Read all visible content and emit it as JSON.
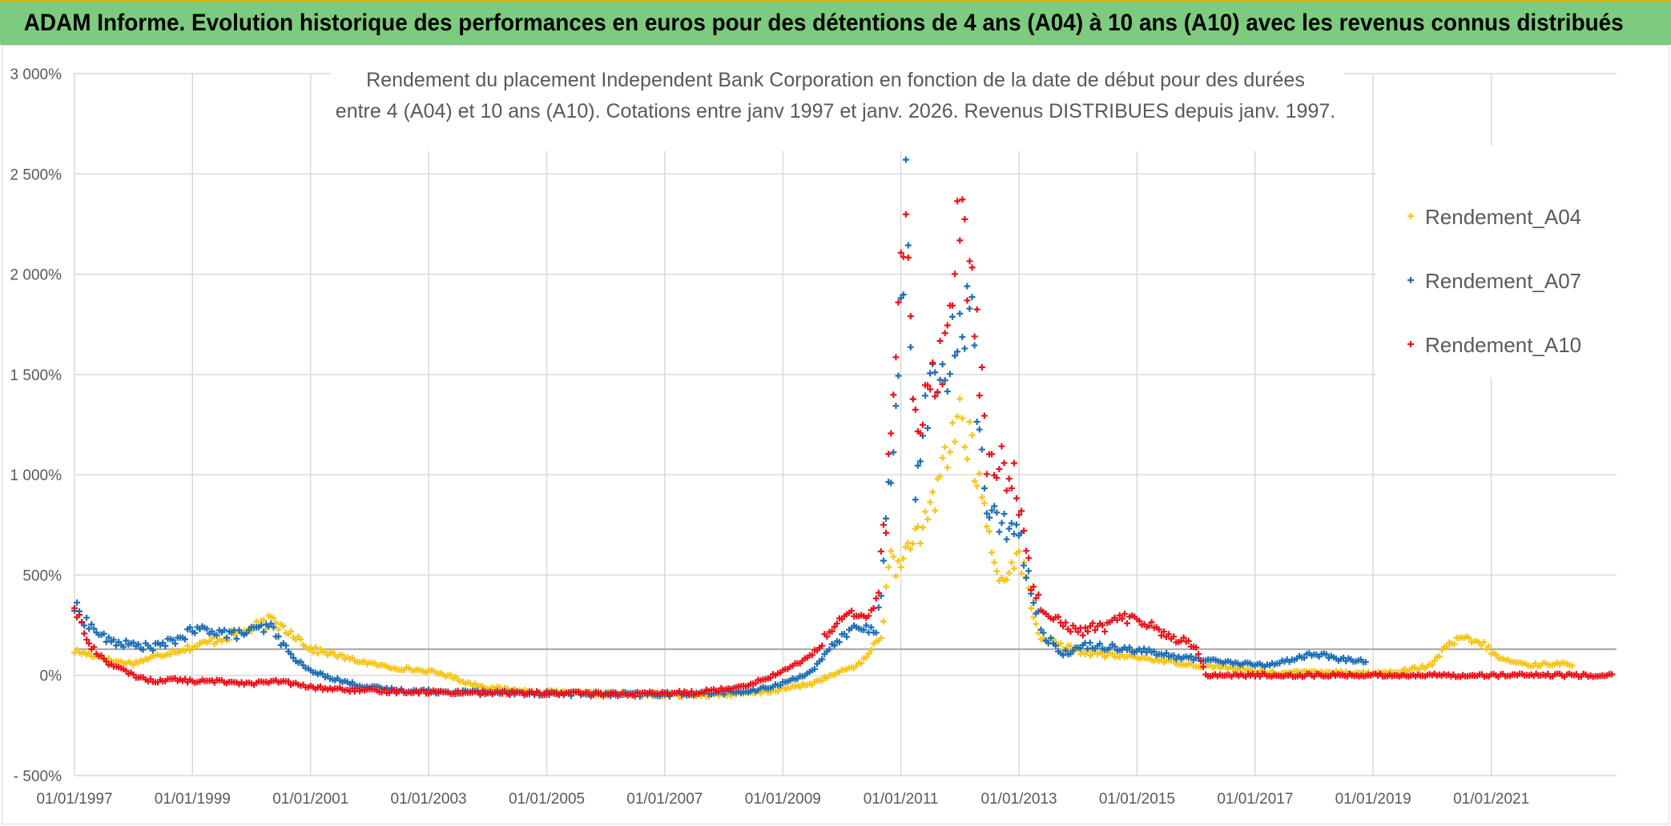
{
  "banner": {
    "title": "ADAM Informe. Evolution historique des performances en euros pour des détentions de 4 ans (A04) à 10 ans (A10) avec les revenus connus distribués"
  },
  "colors": {
    "A04": "#f5c518",
    "A07": "#1f6fb5",
    "A10": "#e8141c",
    "grid": "#d9d9d9",
    "banner": "#7dcb7f"
  },
  "chart_data": {
    "type": "scatter",
    "title_lines": [
      "Rendement du placement Independent Bank Corporation en fonction de la date de début pour des durées",
      "entre 4 (A04) et 10 ans (A10). Cotations entre janv 1997 et janv. 2026. Revenus DISTRIBUES depuis janv. 1997."
    ],
    "x_range": [
      "1997-01-01",
      "2023-02-15"
    ],
    "y_range": [
      -500,
      3000
    ],
    "y_ticks": [
      {
        "value": -500,
        "label": "- 500%"
      },
      {
        "value": 0,
        "label": "0%"
      },
      {
        "value": 500,
        "label": "500%"
      },
      {
        "value": 1000,
        "label": "1 000%"
      },
      {
        "value": 1500,
        "label": "1 500%"
      },
      {
        "value": 2000,
        "label": "2 000%"
      },
      {
        "value": 2500,
        "label": "2 500%"
      },
      {
        "value": 3000,
        "label": "3 000%"
      }
    ],
    "x_ticks": [
      {
        "date": "1997-01-01",
        "label": "01/01/1997"
      },
      {
        "date": "1999-01-01",
        "label": "01/01/1999"
      },
      {
        "date": "2001-01-01",
        "label": "01/01/2001"
      },
      {
        "date": "2003-01-01",
        "label": "01/01/2003"
      },
      {
        "date": "2005-01-01",
        "label": "01/01/2005"
      },
      {
        "date": "2007-01-01",
        "label": "01/01/2007"
      },
      {
        "date": "2009-01-01",
        "label": "01/01/2009"
      },
      {
        "date": "2011-01-01",
        "label": "01/01/2011"
      },
      {
        "date": "2013-01-01",
        "label": "01/01/2013"
      },
      {
        "date": "2015-01-01",
        "label": "01/01/2015"
      },
      {
        "date": "2017-01-01",
        "label": "01/01/2017"
      },
      {
        "date": "2019-01-01",
        "label": "01/01/2019"
      },
      {
        "date": "2021-01-01",
        "label": "01/01/2021"
      }
    ],
    "reference_line": 130,
    "legend_position": "top-right",
    "grid": true,
    "series": [
      {
        "name": "Rendement_A04",
        "key": "A04",
        "points": [
          [
            "1997-01-01",
            120
          ],
          [
            "1997-05-01",
            100
          ],
          [
            "1997-09-01",
            70
          ],
          [
            "1998-01-01",
            60
          ],
          [
            "1998-05-01",
            90
          ],
          [
            "1998-09-01",
            120
          ],
          [
            "1999-01-01",
            140
          ],
          [
            "1999-05-01",
            170
          ],
          [
            "1999-09-01",
            200
          ],
          [
            "2000-01-01",
            230
          ],
          [
            "2000-05-01",
            270
          ],
          [
            "2000-09-01",
            220
          ],
          [
            "2001-01-01",
            130
          ],
          [
            "2001-05-01",
            110
          ],
          [
            "2001-09-01",
            80
          ],
          [
            "2002-01-01",
            60
          ],
          [
            "2002-05-01",
            40
          ],
          [
            "2002-09-01",
            30
          ],
          [
            "2003-01-01",
            20
          ],
          [
            "2003-05-01",
            0
          ],
          [
            "2003-09-01",
            -40
          ],
          [
            "2004-01-01",
            -60
          ],
          [
            "2004-05-01",
            -70
          ],
          [
            "2004-09-01",
            -80
          ],
          [
            "2005-01-01",
            -85
          ],
          [
            "2005-07-01",
            -90
          ],
          [
            "2006-01-01",
            -92
          ],
          [
            "2006-07-01",
            -95
          ],
          [
            "2007-01-01",
            -98
          ],
          [
            "2007-07-01",
            -95
          ],
          [
            "2008-01-01",
            -95
          ],
          [
            "2008-07-01",
            -90
          ],
          [
            "2009-01-01",
            -70
          ],
          [
            "2009-07-01",
            -40
          ],
          [
            "2010-01-01",
            20
          ],
          [
            "2010-05-01",
            60
          ],
          [
            "2010-09-01",
            200
          ],
          [
            "2010-11-01",
            600
          ],
          [
            "2011-01-01",
            520
          ],
          [
            "2011-03-01",
            700
          ],
          [
            "2011-05-01",
            650
          ],
          [
            "2011-08-01",
            900
          ],
          [
            "2011-10-01",
            1100
          ],
          [
            "2012-01-01",
            1300
          ],
          [
            "2012-04-01",
            1050
          ],
          [
            "2012-07-01",
            700
          ],
          [
            "2012-09-01",
            450
          ],
          [
            "2012-12-01",
            600
          ],
          [
            "2013-02-01",
            520
          ],
          [
            "2013-05-01",
            200
          ],
          [
            "2013-09-01",
            150
          ],
          [
            "2014-01-01",
            120
          ],
          [
            "2014-07-01",
            100
          ],
          [
            "2015-01-01",
            90
          ],
          [
            "2015-07-01",
            70
          ],
          [
            "2016-01-01",
            50
          ],
          [
            "2016-07-01",
            40
          ],
          [
            "2017-01-01",
            20
          ],
          [
            "2017-07-01",
            10
          ],
          [
            "2018-01-01",
            20
          ],
          [
            "2018-07-01",
            15
          ],
          [
            "2019-01-01",
            10
          ],
          [
            "2019-07-01",
            20
          ],
          [
            "2020-01-01",
            50
          ],
          [
            "2020-04-01",
            150
          ],
          [
            "2020-07-01",
            180
          ],
          [
            "2020-11-01",
            160
          ],
          [
            "2021-03-01",
            80
          ],
          [
            "2021-09-01",
            50
          ],
          [
            "2022-03-01",
            60
          ],
          [
            "2022-06-01",
            40
          ]
        ]
      },
      {
        "name": "Rendement_A07",
        "key": "A07",
        "points": [
          [
            "1997-01-01",
            340
          ],
          [
            "1997-04-01",
            250
          ],
          [
            "1997-08-01",
            170
          ],
          [
            "1998-01-01",
            150
          ],
          [
            "1998-05-01",
            140
          ],
          [
            "1998-09-01",
            170
          ],
          [
            "1999-01-01",
            220
          ],
          [
            "1999-05-01",
            230
          ],
          [
            "1999-09-01",
            200
          ],
          [
            "2000-01-01",
            220
          ],
          [
            "2000-05-01",
            240
          ],
          [
            "2000-09-01",
            100
          ],
          [
            "2001-01-01",
            20
          ],
          [
            "2001-05-01",
            -10
          ],
          [
            "2001-09-01",
            -40
          ],
          [
            "2002-01-01",
            -60
          ],
          [
            "2002-07-01",
            -75
          ],
          [
            "2003-01-01",
            -80
          ],
          [
            "2003-07-01",
            -82
          ],
          [
            "2004-01-01",
            -85
          ],
          [
            "2004-07-01",
            -88
          ],
          [
            "2005-01-01",
            -90
          ],
          [
            "2005-07-01",
            -92
          ],
          [
            "2006-01-01",
            -94
          ],
          [
            "2006-07-01",
            -96
          ],
          [
            "2007-01-01",
            -95
          ],
          [
            "2007-07-01",
            -90
          ],
          [
            "2008-01-01",
            -85
          ],
          [
            "2008-07-01",
            -80
          ],
          [
            "2009-01-01",
            -40
          ],
          [
            "2009-07-01",
            20
          ],
          [
            "2010-01-01",
            200
          ],
          [
            "2010-05-01",
            250
          ],
          [
            "2010-08-01",
            200
          ],
          [
            "2010-10-01",
            700
          ],
          [
            "2011-01-01",
            1800
          ],
          [
            "2011-02-01",
            2400
          ],
          [
            "2011-04-01",
            900
          ],
          [
            "2011-07-01",
            1500
          ],
          [
            "2011-10-01",
            1400
          ],
          [
            "2012-01-01",
            1800
          ],
          [
            "2012-03-01",
            1900
          ],
          [
            "2012-06-01",
            900
          ],
          [
            "2012-09-01",
            700
          ],
          [
            "2012-12-01",
            800
          ],
          [
            "2013-03-01",
            500
          ],
          [
            "2013-06-01",
            200
          ],
          [
            "2013-10-01",
            110
          ],
          [
            "2014-03-01",
            150
          ],
          [
            "2014-09-01",
            140
          ],
          [
            "2015-03-01",
            120
          ],
          [
            "2015-09-01",
            90
          ],
          [
            "2016-03-01",
            80
          ],
          [
            "2016-09-01",
            60
          ],
          [
            "2017-03-01",
            50
          ],
          [
            "2017-09-01",
            80
          ],
          [
            "2018-01-01",
            110
          ],
          [
            "2018-06-01",
            80
          ],
          [
            "2018-12-01",
            70
          ]
        ]
      },
      {
        "name": "Rendement_A10",
        "key": "A10",
        "points": [
          [
            "1997-01-01",
            350
          ],
          [
            "1997-04-01",
            150
          ],
          [
            "1997-08-01",
            60
          ],
          [
            "1998-01-01",
            0
          ],
          [
            "1998-05-01",
            -30
          ],
          [
            "1998-09-01",
            -20
          ],
          [
            "1999-01-01",
            -30
          ],
          [
            "1999-07-01",
            -30
          ],
          [
            "2000-01-01",
            -40
          ],
          [
            "2000-07-01",
            -30
          ],
          [
            "2001-01-01",
            -60
          ],
          [
            "2001-07-01",
            -70
          ],
          [
            "2002-01-01",
            -78
          ],
          [
            "2002-07-01",
            -80
          ],
          [
            "2003-01-01",
            -82
          ],
          [
            "2003-07-01",
            -85
          ],
          [
            "2004-01-01",
            -87
          ],
          [
            "2004-07-01",
            -88
          ],
          [
            "2005-01-01",
            -90
          ],
          [
            "2005-07-01",
            -92
          ],
          [
            "2006-01-01",
            -93
          ],
          [
            "2006-07-01",
            -94
          ],
          [
            "2007-01-01",
            -92
          ],
          [
            "2007-07-01",
            -85
          ],
          [
            "2008-01-01",
            -70
          ],
          [
            "2008-07-01",
            -40
          ],
          [
            "2009-01-01",
            20
          ],
          [
            "2009-07-01",
            100
          ],
          [
            "2010-01-01",
            300
          ],
          [
            "2010-05-01",
            280
          ],
          [
            "2010-08-01",
            350
          ],
          [
            "2010-10-01",
            800
          ],
          [
            "2011-01-01",
            2000
          ],
          [
            "2011-02-01",
            2100
          ],
          [
            "2011-04-01",
            1200
          ],
          [
            "2011-07-01",
            1500
          ],
          [
            "2011-10-01",
            1600
          ],
          [
            "2012-01-01",
            2300
          ],
          [
            "2012-04-01",
            1800
          ],
          [
            "2012-07-01",
            1000
          ],
          [
            "2012-10-01",
            1050
          ],
          [
            "2013-01-01",
            900
          ],
          [
            "2013-04-01",
            400
          ],
          [
            "2013-08-01",
            300
          ],
          [
            "2014-01-01",
            220
          ],
          [
            "2014-07-01",
            250
          ],
          [
            "2015-01-01",
            300
          ],
          [
            "2015-07-01",
            200
          ],
          [
            "2016-01-01",
            150
          ],
          [
            "2016-03-01",
            0
          ],
          [
            "2017-01-01",
            0
          ],
          [
            "2018-01-01",
            0
          ],
          [
            "2019-01-01",
            0
          ],
          [
            "2020-01-01",
            0
          ],
          [
            "2021-01-01",
            0
          ],
          [
            "2022-01-01",
            0
          ],
          [
            "2023-02-01",
            0
          ]
        ]
      }
    ]
  }
}
